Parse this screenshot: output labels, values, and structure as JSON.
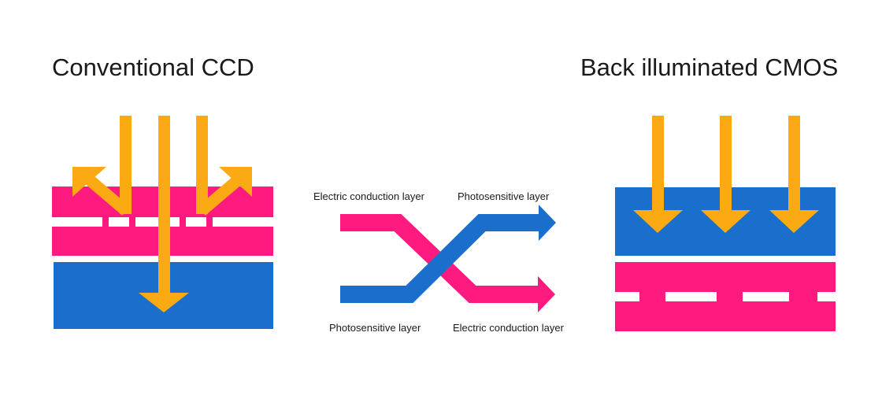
{
  "titles": {
    "left": "Conventional CCD",
    "right": "Back illuminated CMOS"
  },
  "middle_labels": {
    "top_left": "Electric conduction layer",
    "top_right": "Photosensitive layer",
    "bottom_left": "Photosensitive layer",
    "bottom_right": "Electric conduction layer"
  },
  "colors": {
    "electric_conduction_layer": "#ff1a80",
    "photosensitive_layer": "#1a6fcc",
    "light": "#fcaa14",
    "gap": "#ffffff"
  }
}
